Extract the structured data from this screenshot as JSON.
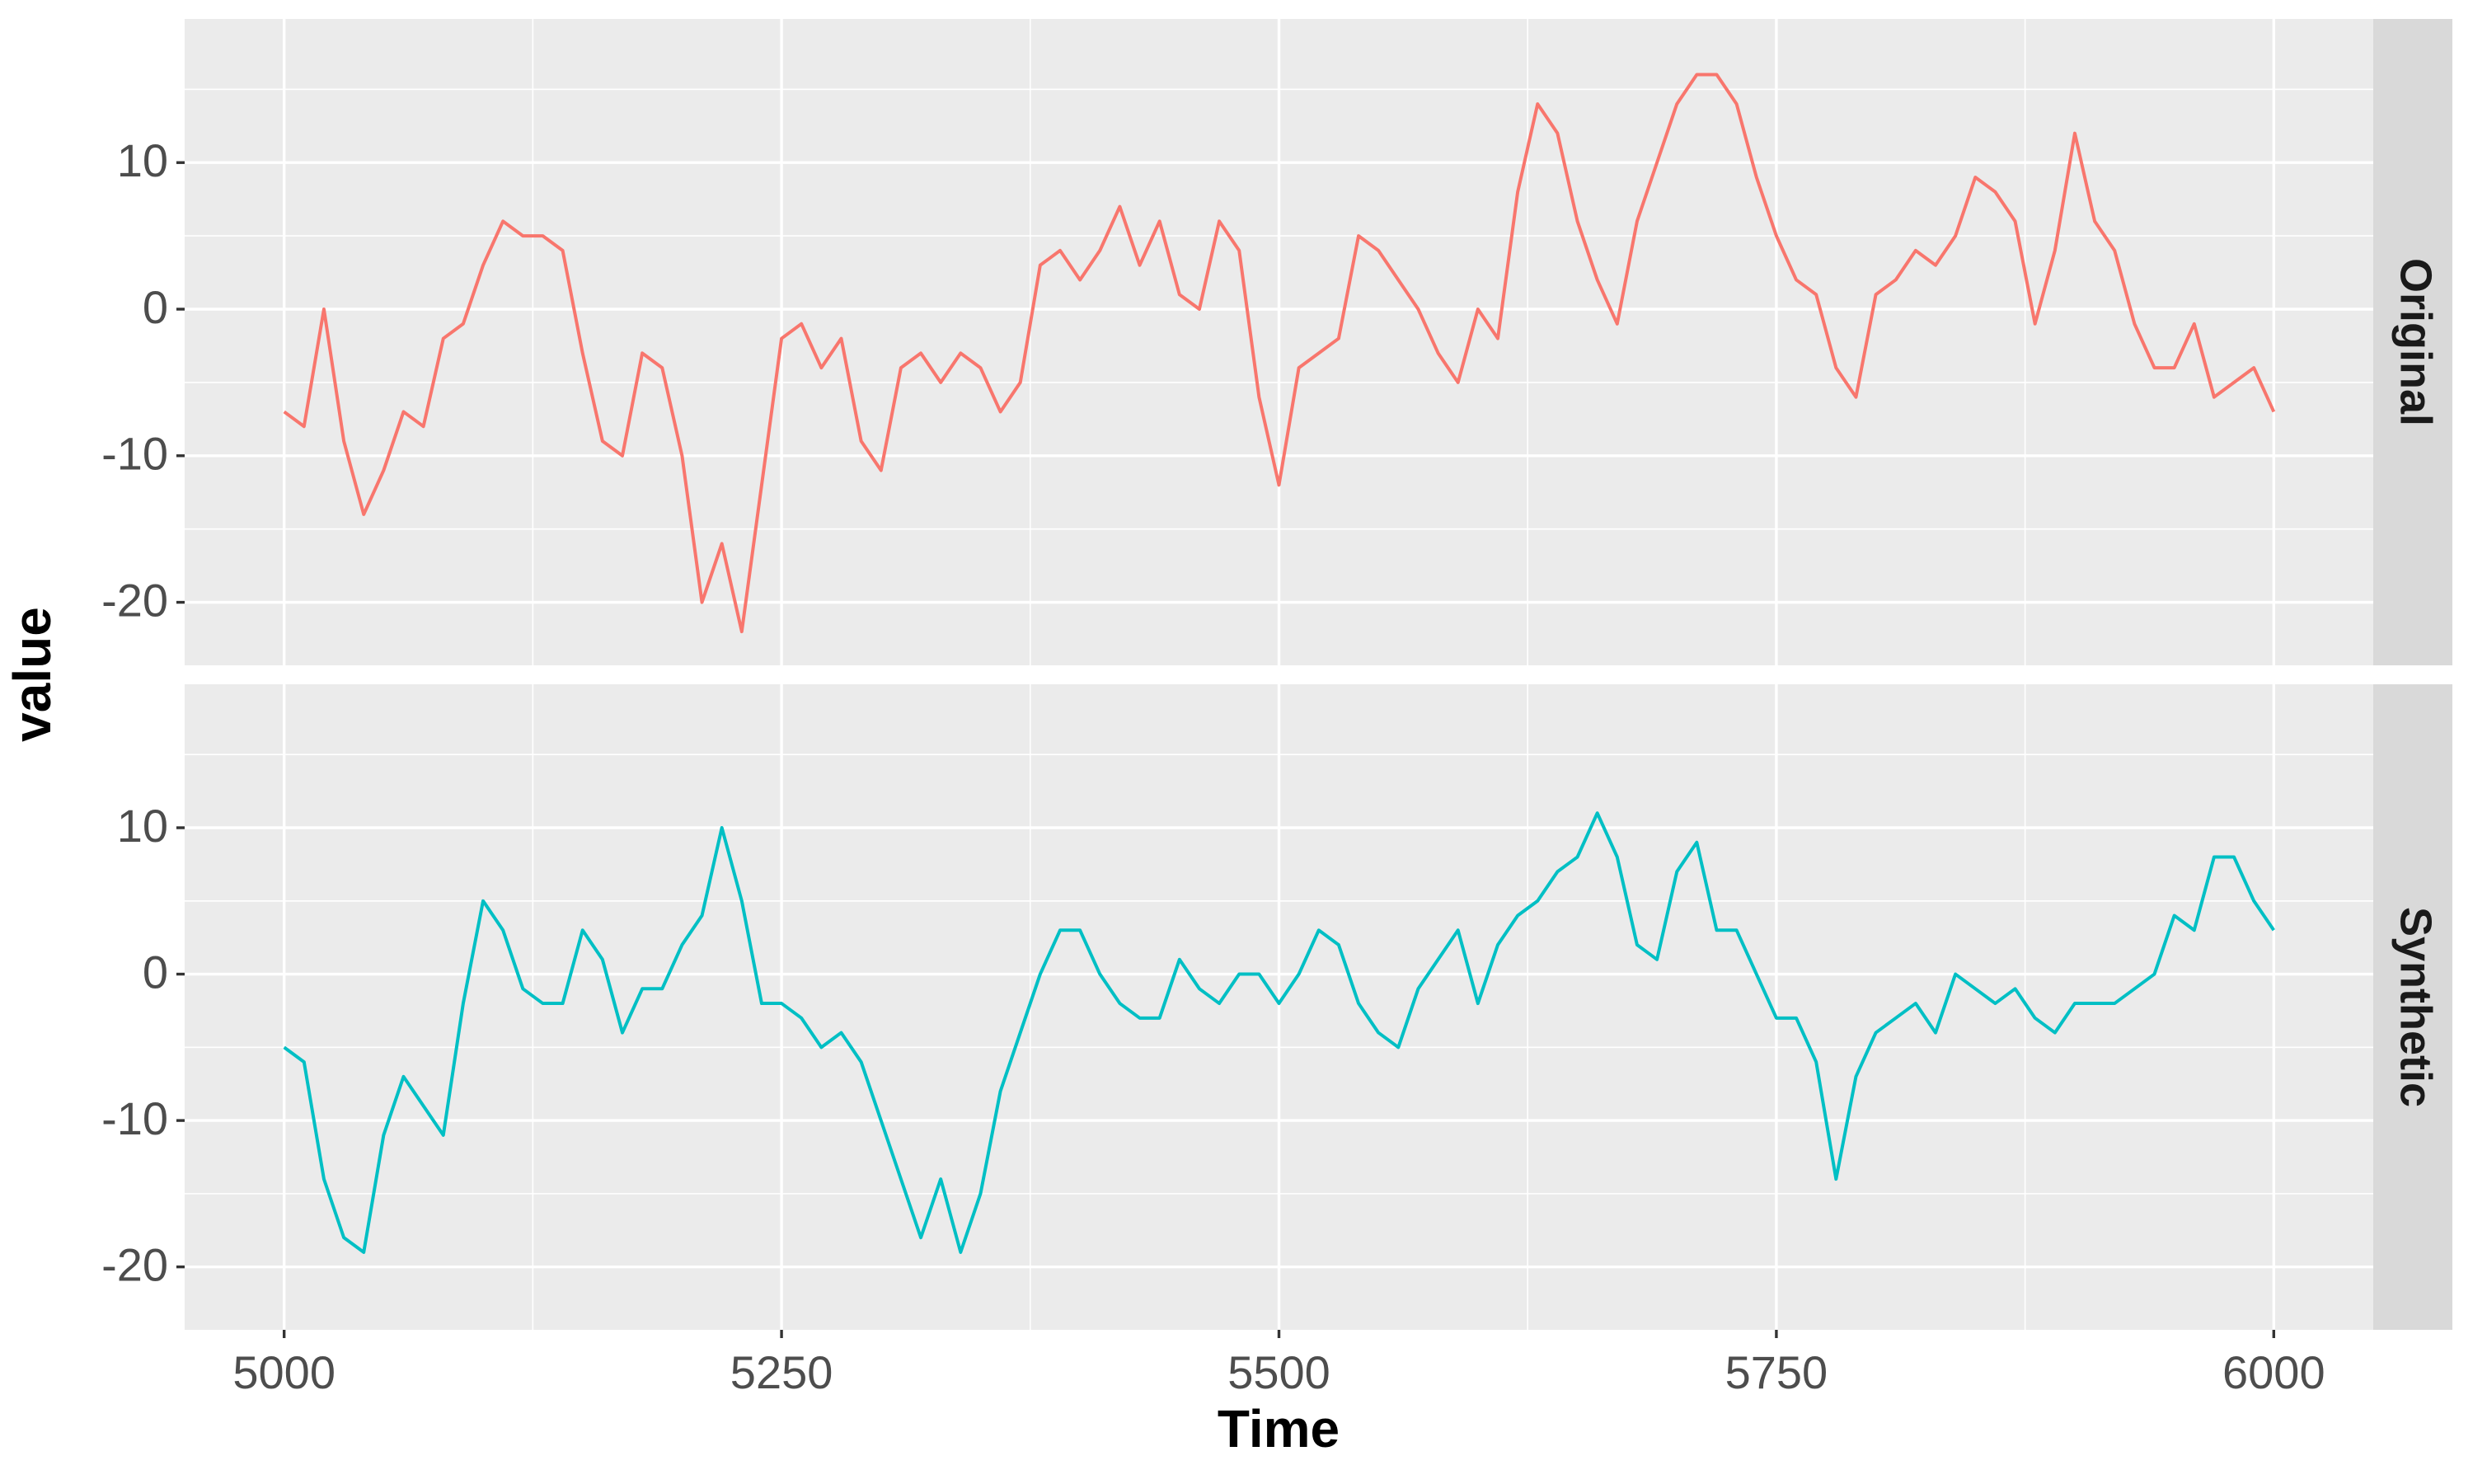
{
  "chart_data": {
    "type": "line",
    "facet": true,
    "xlabel": "Time",
    "ylabel": "value",
    "xlim": [
      4950,
      6050
    ],
    "ylim": [
      -24.3,
      19.8
    ],
    "xticks": [
      5000,
      5250,
      5500,
      5750,
      6000
    ],
    "yticks": [
      -20,
      -10,
      0,
      10
    ],
    "x_minor_ticks": [
      5125,
      5375,
      5625,
      5875
    ],
    "y_minor_ticks": [
      -15,
      -5,
      5,
      15
    ],
    "grid": true,
    "x": [
      5000,
      5010,
      5020,
      5030,
      5040,
      5050,
      5060,
      5070,
      5080,
      5090,
      5100,
      5110,
      5120,
      5130,
      5140,
      5150,
      5160,
      5170,
      5180,
      5190,
      5200,
      5210,
      5220,
      5230,
      5240,
      5250,
      5260,
      5270,
      5280,
      5290,
      5300,
      5310,
      5320,
      5330,
      5340,
      5350,
      5360,
      5370,
      5380,
      5390,
      5400,
      5410,
      5420,
      5430,
      5440,
      5450,
      5460,
      5470,
      5480,
      5490,
      5500,
      5510,
      5520,
      5530,
      5540,
      5550,
      5560,
      5570,
      5580,
      5590,
      5600,
      5610,
      5620,
      5630,
      5640,
      5650,
      5660,
      5670,
      5680,
      5690,
      5700,
      5710,
      5720,
      5730,
      5740,
      5750,
      5760,
      5770,
      5780,
      5790,
      5800,
      5810,
      5820,
      5830,
      5840,
      5850,
      5860,
      5870,
      5880,
      5890,
      5900,
      5910,
      5920,
      5930,
      5940,
      5950,
      5960,
      5970,
      5980,
      5990,
      6000
    ],
    "series": [
      {
        "name": "Original",
        "color": "#f8766d",
        "values": [
          -7,
          -8,
          0,
          -9,
          -14,
          -11,
          -7,
          -8,
          -2,
          -1,
          3,
          6,
          5,
          5,
          4,
          -3,
          -9,
          -10,
          -3,
          -4,
          -10,
          -20,
          -16,
          -22,
          -12,
          -2,
          -1,
          -4,
          -2,
          -9,
          -11,
          -4,
          -3,
          -5,
          -3,
          -4,
          -7,
          -5,
          3,
          4,
          2,
          4,
          7,
          3,
          6,
          1,
          0,
          6,
          4,
          -6,
          -12,
          -4,
          -3,
          -2,
          5,
          4,
          2,
          0,
          -3,
          -5,
          0,
          -2,
          8,
          14,
          12,
          6,
          2,
          -1,
          6,
          10,
          14,
          16,
          16,
          14,
          9,
          5,
          2,
          1,
          -4,
          -6,
          1,
          2,
          4,
          3,
          5,
          9,
          8,
          6,
          -1,
          4,
          12,
          6,
          4,
          -1,
          -4,
          -4,
          -1,
          -6,
          -5,
          -4,
          -7
        ]
      },
      {
        "name": "Synthetic",
        "color": "#00bfc4",
        "values": [
          -5,
          -6,
          -14,
          -18,
          -19,
          -11,
          -7,
          -9,
          -11,
          -2,
          5,
          3,
          -1,
          -2,
          -2,
          3,
          1,
          -4,
          -1,
          -1,
          2,
          4,
          10,
          5,
          -2,
          -2,
          -3,
          -5,
          -4,
          -6,
          -10,
          -14,
          -18,
          -14,
          -19,
          -15,
          -8,
          -4,
          0,
          3,
          3,
          0,
          -2,
          -3,
          -3,
          1,
          -1,
          -2,
          0,
          0,
          -2,
          0,
          3,
          2,
          -2,
          -4,
          -5,
          -1,
          1,
          3,
          -2,
          2,
          4,
          5,
          7,
          8,
          11,
          8,
          2,
          1,
          7,
          9,
          3,
          3,
          0,
          -3,
          -3,
          -6,
          -14,
          -7,
          -4,
          -3,
          -2,
          -4,
          0,
          -1,
          -2,
          -1,
          -3,
          -4,
          -2,
          -2,
          -2,
          -1,
          0,
          4,
          3,
          8,
          8,
          5,
          3
        ]
      }
    ]
  }
}
